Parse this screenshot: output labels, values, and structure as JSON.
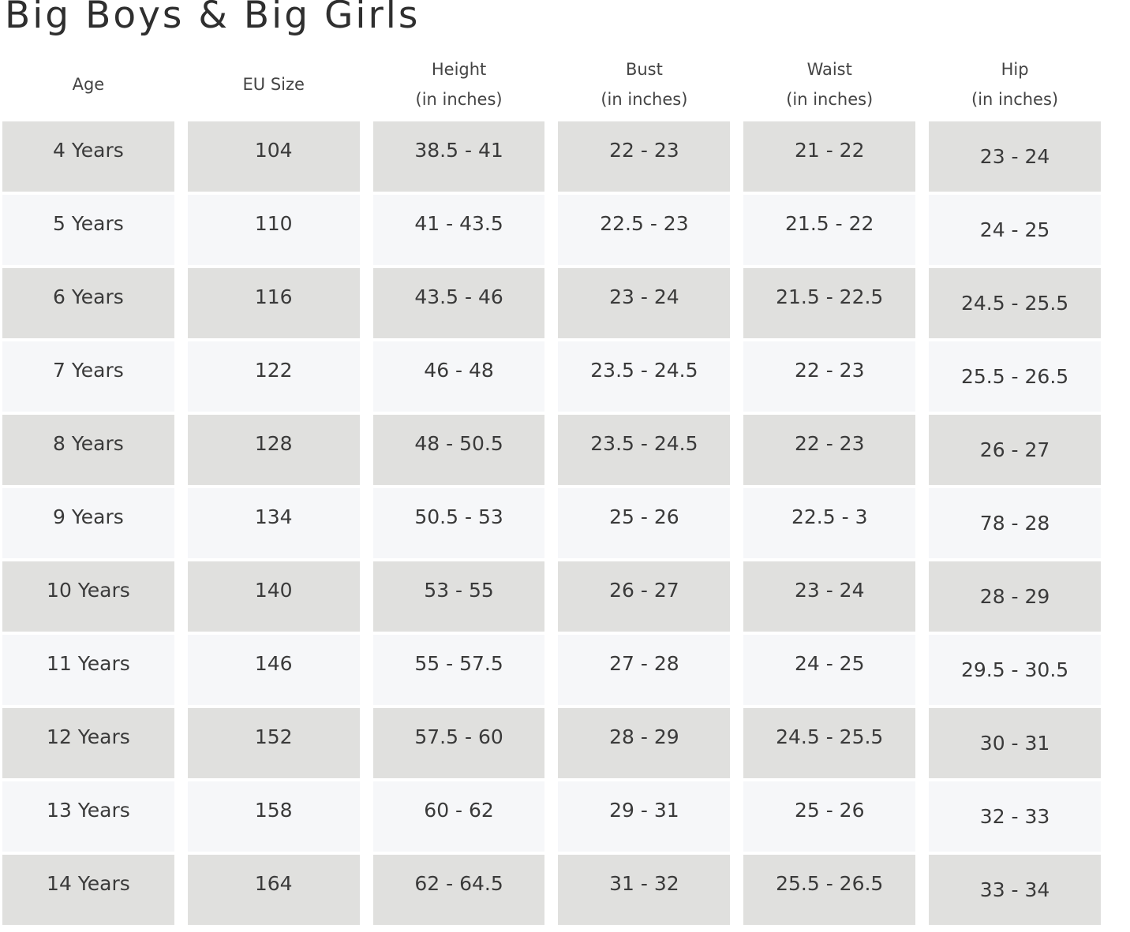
{
  "title": "Big Boys & Big Girls",
  "table": {
    "headers": [
      {
        "line1": "Age",
        "line2": ""
      },
      {
        "line1": "EU Size",
        "line2": ""
      },
      {
        "line1": "Height",
        "line2": "(in inches)"
      },
      {
        "line1": "Bust",
        "line2": "(in inches)"
      },
      {
        "line1": "Waist",
        "line2": "(in inches)"
      },
      {
        "line1": "Hip",
        "line2": "(in inches)"
      }
    ],
    "rows": [
      {
        "age": "4 Years",
        "eu": "104",
        "height": "38.5 - 41",
        "bust": "22 - 23",
        "waist": "21 - 22",
        "hip": "23 - 24"
      },
      {
        "age": "5 Years",
        "eu": "110",
        "height": "41 - 43.5",
        "bust": "22.5 - 23",
        "waist": "21.5 - 22",
        "hip": "24 - 25"
      },
      {
        "age": "6 Years",
        "eu": "116",
        "height": "43.5 - 46",
        "bust": "23 - 24",
        "waist": "21.5 - 22.5",
        "hip": "24.5 - 25.5"
      },
      {
        "age": "7 Years",
        "eu": "122",
        "height": "46 - 48",
        "bust": "23.5 - 24.5",
        "waist": "22 - 23",
        "hip": "25.5 - 26.5"
      },
      {
        "age": "8 Years",
        "eu": "128",
        "height": "48 - 50.5",
        "bust": "23.5 - 24.5",
        "waist": "22 - 23",
        "hip": "26 - 27"
      },
      {
        "age": "9 Years",
        "eu": "134",
        "height": "50.5 - 53",
        "bust": "25 - 26",
        "waist": "22.5 - 3",
        "hip": "78 - 28"
      },
      {
        "age": "10 Years",
        "eu": "140",
        "height": "53 - 55",
        "bust": "26 - 27",
        "waist": "23 - 24",
        "hip": "28 - 29"
      },
      {
        "age": "11 Years",
        "eu": "146",
        "height": "55 - 57.5",
        "bust": "27 - 28",
        "waist": "24 - 25",
        "hip": "29.5 - 30.5"
      },
      {
        "age": "12 Years",
        "eu": "152",
        "height": "57.5 - 60",
        "bust": "28 - 29",
        "waist": "24.5 - 25.5",
        "hip": "30 - 31"
      },
      {
        "age": "13 Years",
        "eu": "158",
        "height": "60 - 62",
        "bust": "29 - 31",
        "waist": "25 - 26",
        "hip": "32 - 33"
      },
      {
        "age": "14 Years",
        "eu": "164",
        "height": "62 - 64.5",
        "bust": "31 - 32",
        "waist": "25.5 - 26.5",
        "hip": "33 - 34"
      }
    ]
  },
  "colors": {
    "shaded_row": "#e0e0de",
    "light_row": "#f6f7f9",
    "text": "#3a3a3a"
  }
}
